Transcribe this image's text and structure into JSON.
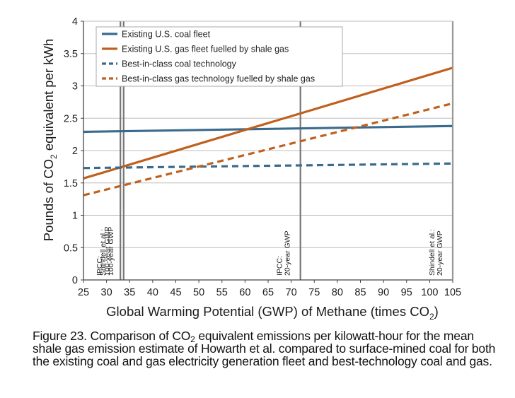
{
  "chart_data": {
    "type": "line",
    "xlabel": "Global Warming Potential (GWP) of Methane (times CO",
    "xlabel_sub": "2",
    "xlabel_end": ")",
    "ylabel": "Pounds of CO",
    "ylabel_sub": "2",
    "ylabel_end": " equivalent per kWh",
    "xlim": [
      25,
      105
    ],
    "ylim": [
      0,
      4
    ],
    "x_ticks": [
      25,
      30,
      35,
      40,
      45,
      50,
      55,
      60,
      65,
      70,
      75,
      80,
      85,
      90,
      95,
      100,
      105
    ],
    "y_ticks": [
      {
        "value": 0,
        "label": "0"
      },
      {
        "value": 0.5,
        "label": "0.5"
      },
      {
        "value": 1,
        "label": "1"
      },
      {
        "value": 1.5,
        "label": "1.5"
      },
      {
        "value": 2,
        "label": "2"
      },
      {
        "value": 2.5,
        "label": "2.5"
      },
      {
        "value": 3,
        "label": "3"
      },
      {
        "value": 3.5,
        "label": "3.5"
      },
      {
        "value": 4,
        "label": "4"
      }
    ],
    "series": [
      {
        "name": "Existing U.S. coal fleet",
        "color": "#3a6b8c",
        "dash": false,
        "points": [
          [
            25,
            2.29
          ],
          [
            105,
            2.38
          ]
        ]
      },
      {
        "name": "Existing U.S. gas fleet fuelled by shale gas",
        "color": "#c0601e",
        "dash": false,
        "points": [
          [
            25,
            1.57
          ],
          [
            105,
            3.28
          ]
        ]
      },
      {
        "name": "Best-in-class coal technology",
        "color": "#3a6b8c",
        "dash": true,
        "points": [
          [
            25,
            1.73
          ],
          [
            105,
            1.8
          ]
        ]
      },
      {
        "name": "Best-in-class gas technology fuelled by shale gas",
        "color": "#c0601e",
        "dash": true,
        "points": [
          [
            25,
            1.31
          ],
          [
            105,
            2.73
          ]
        ]
      }
    ],
    "reference_lines": [
      {
        "x": 33,
        "label_lines": [
          "IPCC:",
          "100-year GWP"
        ]
      },
      {
        "x": 33.7,
        "label_lines": [
          "Shindell et al.:",
          "100-year GWP"
        ]
      },
      {
        "x": 72,
        "label_lines": [
          "IPCC:",
          "20-year GWP"
        ]
      },
      {
        "x": 105,
        "label_lines": [
          "Shindell et al.:",
          "20-year GWP"
        ]
      }
    ],
    "grid": true,
    "legend_position": "top-left"
  },
  "caption": {
    "part1": "Figure 23. Comparison of CO",
    "sub": "2",
    "part2": " equivalent emissions per kilowatt-hour for the mean shale gas emission estimate of Howarth et al. compared to surface-mined coal for both the existing coal and gas electricity generation fleet and best-technology coal and gas."
  }
}
